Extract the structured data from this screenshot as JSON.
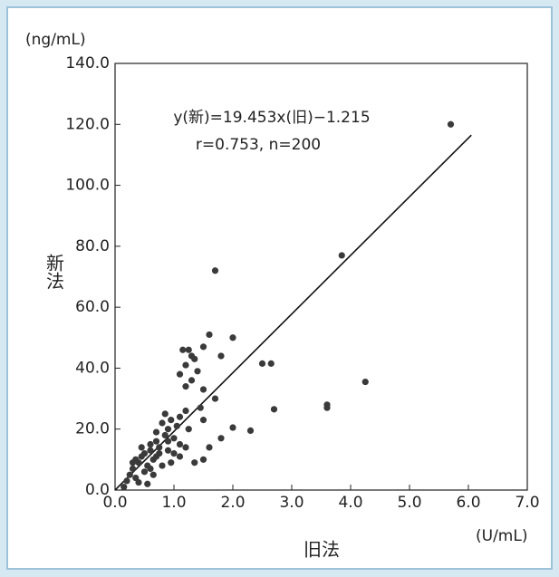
{
  "chart_data": {
    "type": "scatter",
    "y_unit": "(ng/mL)",
    "x_unit": "(U/mL)",
    "y_label": "新法",
    "x_label": "旧法",
    "annotations": [
      "y(新)=19.453x(旧)−1.215",
      "r=0.753, n=200"
    ],
    "fit": {
      "slope": 19.453,
      "intercept": -1.215,
      "xlim": [
        0,
        6.05
      ]
    },
    "color": "#3a3a3a",
    "x": [
      5.7,
      3.85,
      1.7,
      4.25,
      3.6,
      3.6,
      2.7,
      2.5,
      2.65,
      2.3,
      2.0,
      2.0,
      1.6,
      1.5,
      1.8,
      1.25,
      1.15,
      1.3,
      1.2,
      1.35,
      1.4,
      1.1,
      1.3,
      1.2,
      1.5,
      1.7,
      1.45,
      1.2,
      1.1,
      1.5,
      1.8,
      1.6,
      1.5,
      1.35,
      1.0,
      0.9,
      0.8,
      0.85,
      0.7,
      0.75,
      0.6,
      0.5,
      0.65,
      0.4,
      0.3,
      0.25,
      0.2,
      0.35,
      0.5,
      0.55,
      0.45,
      0.6,
      0.7,
      0.9,
      1.0,
      0.95,
      1.1,
      0.8,
      0.3,
      0.55,
      0.15,
      0.4,
      0.65,
      0.7,
      0.85,
      1.05,
      0.9,
      1.2,
      0.75,
      1.1,
      0.6,
      1.25,
      0.95,
      0.45,
      0.35
    ],
    "y": [
      120,
      77,
      72,
      35.5,
      27,
      28,
      26.5,
      41.5,
      41.5,
      19.5,
      20.5,
      50,
      51,
      47,
      44,
      46,
      46,
      44,
      41,
      43,
      39,
      38,
      36,
      34,
      33,
      30,
      27,
      26,
      24,
      23,
      17,
      14,
      10,
      9,
      12,
      20,
      22,
      18,
      16,
      14,
      13,
      12,
      10,
      9,
      7,
      5,
      3,
      4,
      6,
      8,
      11,
      15,
      11,
      13,
      17,
      9,
      15,
      8,
      9,
      2,
      1,
      2.5,
      5,
      19,
      25,
      21,
      16,
      14,
      12,
      11,
      7,
      20,
      23,
      14,
      10
    ],
    "xlim": [
      0,
      7
    ],
    "ylim": [
      0,
      140
    ],
    "xticks": [
      {
        "value": 0,
        "label": "0.0"
      },
      {
        "value": 1,
        "label": "1.0"
      },
      {
        "value": 2,
        "label": "2.0"
      },
      {
        "value": 3,
        "label": "3.0"
      },
      {
        "value": 4,
        "label": "4.0"
      },
      {
        "value": 5,
        "label": "5.0"
      },
      {
        "value": 6,
        "label": "6.0"
      },
      {
        "value": 7,
        "label": "7.0"
      }
    ],
    "yticks": [
      {
        "value": 0,
        "label": "0.0"
      },
      {
        "value": 20,
        "label": "20.0"
      },
      {
        "value": 40,
        "label": "40.0"
      },
      {
        "value": 60,
        "label": "60.0"
      },
      {
        "value": 80,
        "label": "80.0"
      },
      {
        "value": 100,
        "label": "100.0"
      },
      {
        "value": 120,
        "label": "120.0"
      },
      {
        "value": 140,
        "label": "140.0"
      }
    ]
  }
}
